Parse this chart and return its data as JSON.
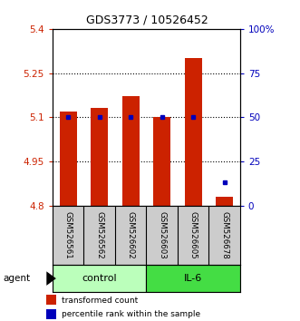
{
  "title": "GDS3773 / 10526452",
  "samples": [
    "GSM526561",
    "GSM526562",
    "GSM526602",
    "GSM526603",
    "GSM526605",
    "GSM526678"
  ],
  "bar_bottoms": [
    4.8,
    4.8,
    4.8,
    4.8,
    4.8,
    4.8
  ],
  "bar_tops": [
    5.12,
    5.13,
    5.17,
    5.1,
    5.3,
    4.83
  ],
  "percentile_percents": [
    50,
    50,
    50,
    50,
    50,
    13
  ],
  "ylim": [
    4.8,
    5.4
  ],
  "yticks_left": [
    4.8,
    4.95,
    5.1,
    5.25,
    5.4
  ],
  "yticks_right": [
    0,
    25,
    50,
    75,
    100
  ],
  "ytick_labels_left": [
    "4.8",
    "4.95",
    "5.1",
    "5.25",
    "5.4"
  ],
  "ytick_labels_right": [
    "0",
    "25",
    "50",
    "75",
    "100%"
  ],
  "gridlines": [
    4.95,
    5.1,
    5.25
  ],
  "bar_color": "#cc2200",
  "blue_color": "#0000bb",
  "control_color": "#bbffbb",
  "il6_color": "#44dd44",
  "label_bg_color": "#cccccc",
  "group_label_control": "control",
  "group_label_il6": "IL-6",
  "agent_label": "agent",
  "legend_bar_label": "transformed count",
  "legend_dot_label": "percentile rank within the sample",
  "bar_width": 0.55,
  "n_control": 3,
  "n_il6": 3
}
